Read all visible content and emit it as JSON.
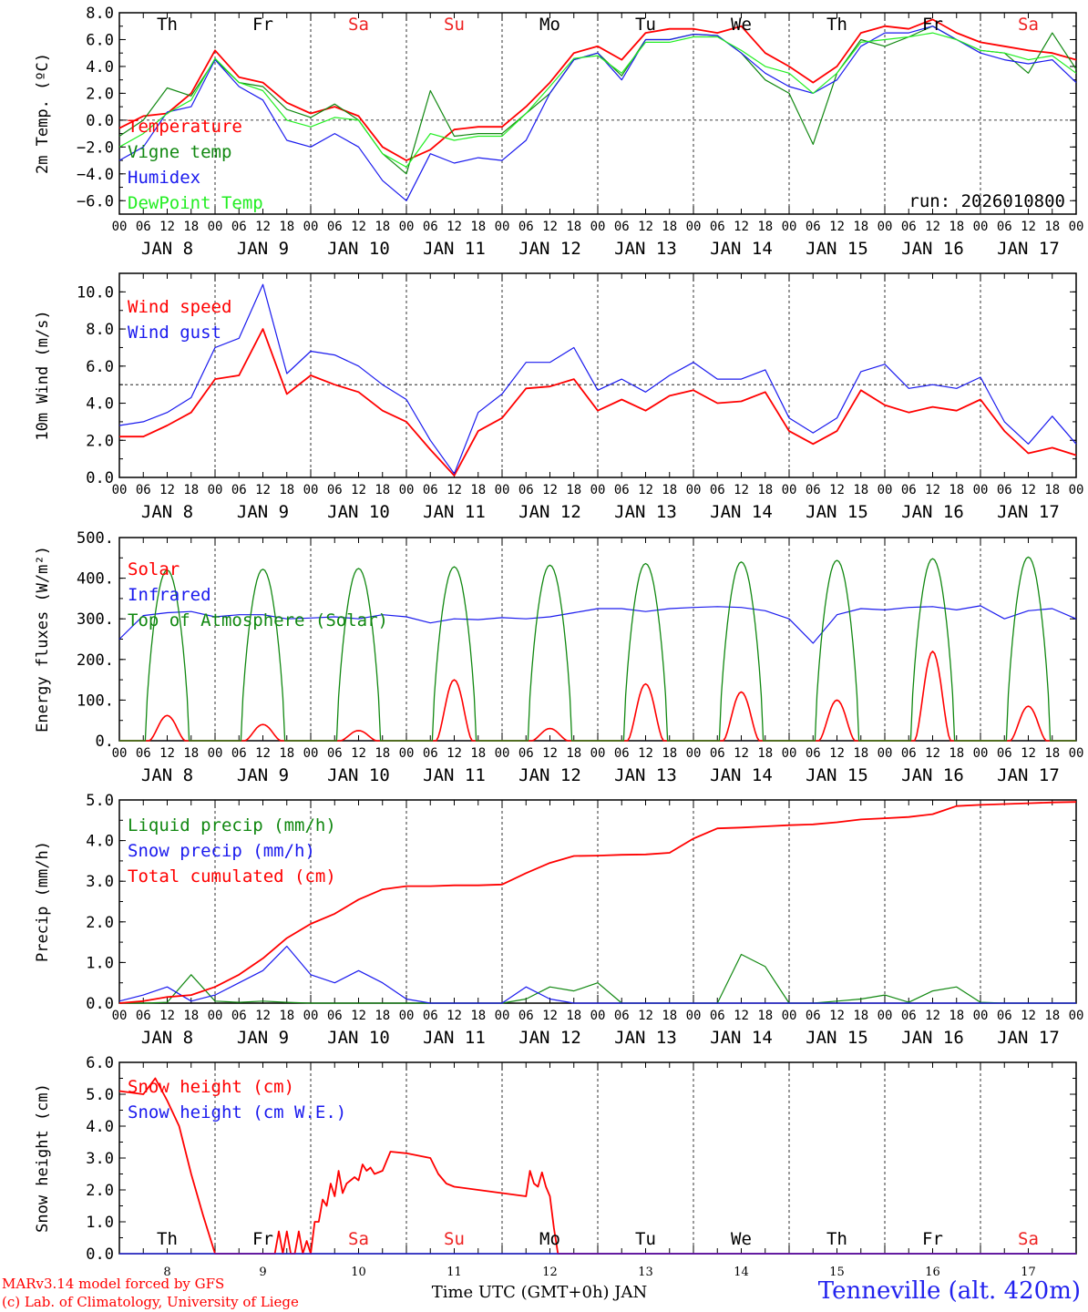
{
  "footer": {
    "model": "MARv3.14 model forced by GFS",
    "credit": "(c) Lab. of Climatology, University of Liege",
    "station": "Tenneville (alt. 420m)"
  },
  "colors": {
    "red": "#ff0000",
    "darkgreen": "#118811",
    "blue": "#1a1aee",
    "lightgreen": "#22ee22",
    "weekend": "#ee2222"
  },
  "chart_data": [
    {
      "id": "temp",
      "type": "line",
      "ylabel": "2m Temp. (ºC)",
      "ylim": [
        -7,
        8
      ],
      "yticks": [
        -6,
        -4,
        -2,
        0,
        2,
        4,
        6,
        8
      ],
      "yticklabels": [
        "−6.0",
        "−4.0",
        "−2.0",
        "0.0",
        "2.0",
        "4.0",
        "6.0",
        "8.0"
      ],
      "zero_line": 0,
      "annotation": "run: 2026010800",
      "days_top": [
        "Th",
        "Fr",
        "Sa",
        "Su",
        "Mo",
        "Tu",
        "We",
        "Th",
        "Fr",
        "Sa"
      ],
      "x_hours": [
        0,
        6,
        12,
        18,
        24,
        30,
        36,
        42,
        48,
        54,
        60,
        66,
        72,
        78,
        84,
        90,
        96,
        102,
        108,
        114,
        120,
        126,
        132,
        138,
        144,
        150,
        156,
        162,
        168,
        174,
        180,
        186,
        192,
        198,
        204,
        210,
        216,
        222,
        228,
        234,
        240
      ],
      "series": [
        {
          "name": "Temperature",
          "color": "red",
          "values": [
            -0.6,
            0.3,
            0.5,
            2.0,
            5.2,
            3.2,
            2.8,
            1.3,
            0.5,
            1.0,
            0.3,
            -2.0,
            -3.0,
            -2.2,
            -0.7,
            -0.5,
            -0.5,
            1.0,
            2.8,
            5.0,
            5.5,
            4.5,
            6.5,
            6.8,
            6.8,
            6.5,
            7.0,
            5.0,
            4.0,
            2.8,
            4.0,
            6.5,
            7.0,
            6.8,
            7.5,
            6.5,
            5.8,
            5.5,
            5.2,
            5.0,
            4.5
          ]
        },
        {
          "name": "Vigne temp",
          "color": "darkgreen",
          "values": [
            -1.2,
            0.0,
            2.4,
            1.8,
            4.5,
            2.8,
            2.5,
            0.8,
            0.2,
            1.2,
            0.0,
            -2.5,
            -4.0,
            2.2,
            -1.2,
            -1.0,
            -1.0,
            0.5,
            2.0,
            4.5,
            5.0,
            3.3,
            6.0,
            6.0,
            6.4,
            6.3,
            5.0,
            3.0,
            2.0,
            -1.8,
            3.5,
            6.0,
            5.5,
            6.2,
            7.0,
            6.0,
            5.2,
            5.0,
            3.5,
            6.5,
            3.8
          ]
        },
        {
          "name": "Humidex",
          "color": "blue",
          "values": [
            -3.0,
            -2.0,
            0.6,
            1.0,
            4.5,
            2.5,
            1.5,
            -1.5,
            -2.0,
            -1.0,
            -2.0,
            -4.5,
            -6.0,
            -2.5,
            -3.2,
            -2.8,
            -3.0,
            -1.5,
            2.0,
            4.5,
            5.0,
            3.0,
            6.0,
            6.0,
            6.4,
            6.3,
            5.0,
            3.5,
            2.5,
            2.0,
            3.0,
            5.5,
            6.5,
            6.5,
            7.0,
            6.0,
            5.0,
            4.5,
            4.2,
            4.5,
            2.8
          ]
        },
        {
          "name": "DewPoint Temp",
          "color": "lightgreen",
          "values": [
            -2.0,
            -1.0,
            0.5,
            1.5,
            4.6,
            2.8,
            2.2,
            0.0,
            -0.5,
            0.2,
            0.0,
            -2.5,
            -3.5,
            -1.0,
            -1.5,
            -1.2,
            -1.2,
            0.5,
            2.5,
            4.6,
            4.8,
            3.5,
            5.8,
            5.8,
            6.2,
            6.2,
            5.2,
            4.0,
            3.5,
            2.0,
            3.5,
            5.8,
            6.0,
            6.2,
            6.5,
            6.0,
            5.2,
            5.0,
            4.5,
            4.8,
            3.5
          ]
        }
      ]
    },
    {
      "id": "wind",
      "type": "line",
      "ylabel": "10m Wind (m/s)",
      "ylim": [
        0,
        11
      ],
      "yticks": [
        0,
        2,
        4,
        6,
        8,
        10
      ],
      "yticklabels": [
        "0.0",
        "2.0",
        "4.0",
        "6.0",
        "8.0",
        "10.0"
      ],
      "ref_line": 5,
      "x_hours": [
        0,
        6,
        12,
        18,
        24,
        30,
        36,
        42,
        48,
        54,
        60,
        66,
        72,
        78,
        84,
        90,
        96,
        102,
        108,
        114,
        120,
        126,
        132,
        138,
        144,
        150,
        156,
        162,
        168,
        174,
        180,
        186,
        192,
        198,
        204,
        210,
        216,
        222,
        228,
        234,
        240
      ],
      "series": [
        {
          "name": "Wind speed",
          "color": "red",
          "values": [
            2.2,
            2.2,
            2.8,
            3.5,
            5.3,
            5.5,
            8.0,
            4.5,
            5.5,
            5.0,
            4.6,
            3.6,
            3.0,
            1.5,
            0.1,
            2.5,
            3.2,
            4.8,
            4.9,
            5.3,
            3.6,
            4.2,
            3.6,
            4.4,
            4.7,
            4.0,
            4.1,
            4.6,
            2.5,
            1.8,
            2.5,
            4.7,
            3.9,
            3.5,
            3.8,
            3.6,
            4.2,
            2.5,
            1.3,
            1.6,
            1.2
          ]
        },
        {
          "name": "Wind gust",
          "color": "blue",
          "values": [
            2.8,
            3.0,
            3.5,
            4.3,
            7.0,
            7.5,
            10.4,
            5.6,
            6.8,
            6.6,
            6.0,
            5.0,
            4.2,
            2.0,
            0.2,
            3.5,
            4.5,
            6.2,
            6.2,
            7.0,
            4.7,
            5.3,
            4.6,
            5.5,
            6.2,
            5.3,
            5.3,
            5.8,
            3.2,
            2.4,
            3.2,
            5.7,
            6.1,
            4.8,
            5.0,
            4.8,
            5.4,
            3.0,
            1.8,
            3.3,
            1.8
          ]
        }
      ]
    },
    {
      "id": "energy",
      "type": "line",
      "ylabel": "Energy fluxes (W/m²)",
      "ylim": [
        0,
        500
      ],
      "yticks": [
        0,
        100,
        200,
        300,
        400,
        500
      ],
      "yticklabels": [
        "0.",
        "100.",
        "200.",
        "300.",
        "400.",
        "500."
      ],
      "series": [
        {
          "name": "Solar",
          "color": "red",
          "peaks": [
            62,
            40,
            25,
            150,
            30,
            140,
            120,
            100,
            220,
            85
          ]
        },
        {
          "name": "Infrared",
          "color": "blue",
          "x_hours": [
            0,
            6,
            12,
            18,
            24,
            30,
            36,
            42,
            48,
            54,
            60,
            66,
            72,
            78,
            84,
            90,
            96,
            102,
            108,
            114,
            120,
            126,
            132,
            138,
            144,
            150,
            156,
            162,
            168,
            174,
            180,
            186,
            192,
            198,
            204,
            210,
            216,
            222,
            228,
            234,
            240
          ],
          "values": [
            250,
            308,
            315,
            318,
            305,
            310,
            310,
            300,
            302,
            305,
            300,
            310,
            305,
            290,
            300,
            298,
            303,
            300,
            305,
            315,
            325,
            325,
            318,
            325,
            328,
            330,
            328,
            320,
            300,
            240,
            310,
            325,
            322,
            328,
            330,
            322,
            332,
            300,
            320,
            325,
            300
          ]
        },
        {
          "name": "Top of Atmosphere (Solar)",
          "color": "darkgreen",
          "peaks": [
            420,
            422,
            424,
            428,
            432,
            436,
            440,
            444,
            448,
            452
          ]
        }
      ]
    },
    {
      "id": "precip",
      "type": "line",
      "ylabel": "Precip (mm/h)",
      "ylim": [
        0,
        5
      ],
      "yticks": [
        0,
        1,
        2,
        3,
        4,
        5
      ],
      "yticklabels": [
        "0.0",
        "1.0",
        "2.0",
        "3.0",
        "4.0",
        "5.0"
      ],
      "x_hours": [
        0,
        6,
        12,
        18,
        24,
        30,
        36,
        42,
        48,
        54,
        60,
        66,
        72,
        78,
        84,
        90,
        96,
        102,
        108,
        114,
        120,
        126,
        132,
        138,
        144,
        150,
        156,
        162,
        168,
        174,
        180,
        186,
        192,
        198,
        204,
        210,
        216,
        222,
        228,
        234,
        240
      ],
      "series": [
        {
          "name": "Liquid precip (mm/h)",
          "color": "darkgreen",
          "values": [
            0,
            0,
            0.02,
            0.7,
            0.05,
            0.02,
            0.05,
            0.02,
            0,
            0,
            0,
            0,
            0,
            0,
            0,
            0,
            0,
            0.1,
            0.4,
            0.3,
            0.5,
            0,
            0,
            0,
            0,
            0,
            1.2,
            0.9,
            0,
            0,
            0.05,
            0.1,
            0.2,
            0.02,
            0.3,
            0.4,
            0.02,
            0,
            0,
            0,
            0
          ]
        },
        {
          "name": "Snow precip (mm/h)",
          "color": "blue",
          "values": [
            0.05,
            0.2,
            0.4,
            0.05,
            0.2,
            0.5,
            0.8,
            1.4,
            0.7,
            0.5,
            0.8,
            0.5,
            0.1,
            0,
            0,
            0,
            0,
            0.4,
            0.1,
            0,
            0,
            0,
            0,
            0,
            0,
            0,
            0,
            0,
            0,
            0,
            0,
            0,
            0,
            0,
            0,
            0,
            0,
            0,
            0,
            0,
            0
          ]
        },
        {
          "name": "Total cumulated (cm)",
          "color": "red",
          "values": [
            0,
            0.05,
            0.15,
            0.2,
            0.4,
            0.7,
            1.1,
            1.6,
            1.95,
            2.2,
            2.55,
            2.8,
            2.88,
            2.88,
            2.9,
            2.9,
            2.92,
            3.2,
            3.45,
            3.62,
            3.63,
            3.65,
            3.66,
            3.7,
            4.05,
            4.3,
            4.32,
            4.35,
            4.38,
            4.4,
            4.45,
            4.52,
            4.55,
            4.58,
            4.65,
            4.85,
            4.88,
            4.9,
            4.92,
            4.94,
            4.95
          ]
        }
      ]
    },
    {
      "id": "snow",
      "type": "line",
      "ylabel": "Snow height (cm)",
      "ylim": [
        0,
        6
      ],
      "yticks": [
        0,
        1,
        2,
        3,
        4,
        5,
        6
      ],
      "yticklabels": [
        "0.0",
        "1.0",
        "2.0",
        "3.0",
        "4.0",
        "5.0",
        "6.0"
      ],
      "xlabel": "Time UTC (GMT+0h) JAN",
      "days_bottom": [
        "Th",
        "Fr",
        "Sa",
        "Su",
        "Mo",
        "Tu",
        "We",
        "Th",
        "Fr",
        "Sa"
      ],
      "date_labels": [
        "8",
        "9",
        "10",
        "11",
        "12",
        "13",
        "14",
        "15",
        "16",
        "17"
      ],
      "series": [
        {
          "name": "Snow height (cm)",
          "color": "red",
          "x_hours": [
            0,
            6,
            9,
            12,
            15,
            18,
            21,
            24,
            24.5,
            39,
            40,
            41,
            42,
            43,
            44,
            45,
            46,
            47,
            48,
            49,
            50,
            51,
            52,
            53,
            54,
            55,
            56,
            57,
            58,
            59,
            60,
            61,
            62,
            63,
            64,
            66,
            68,
            72,
            78,
            80,
            82,
            84,
            90,
            96,
            102,
            103,
            104,
            105,
            106,
            107,
            108,
            109,
            110,
            240
          ],
          "values": [
            5.1,
            5.0,
            5.5,
            4.8,
            4.0,
            2.5,
            1.2,
            0,
            0,
            0,
            0.7,
            0,
            0.7,
            0,
            0,
            0.7,
            0,
            0.4,
            0,
            1.0,
            1.0,
            1.7,
            1.5,
            2.2,
            1.8,
            2.6,
            1.9,
            2.2,
            2.3,
            2.4,
            2.3,
            2.8,
            2.6,
            2.7,
            2.5,
            2.6,
            3.2,
            3.15,
            3.0,
            2.5,
            2.2,
            2.1,
            2.0,
            1.9,
            1.8,
            2.6,
            2.2,
            2.1,
            2.55,
            2.1,
            1.8,
            0.8,
            0,
            0
          ]
        },
        {
          "name": "Snow height (cm W.E.)",
          "color": "blue",
          "x_hours": [
            0,
            240
          ],
          "values": [
            0,
            0
          ]
        }
      ]
    }
  ],
  "axis": {
    "hour_labels": [
      "00",
      "06",
      "12",
      "18"
    ],
    "end_label": "00",
    "month": "JAN",
    "days": [
      "8",
      "9",
      "10",
      "11",
      "12",
      "13",
      "14",
      "15",
      "16",
      "17"
    ]
  }
}
